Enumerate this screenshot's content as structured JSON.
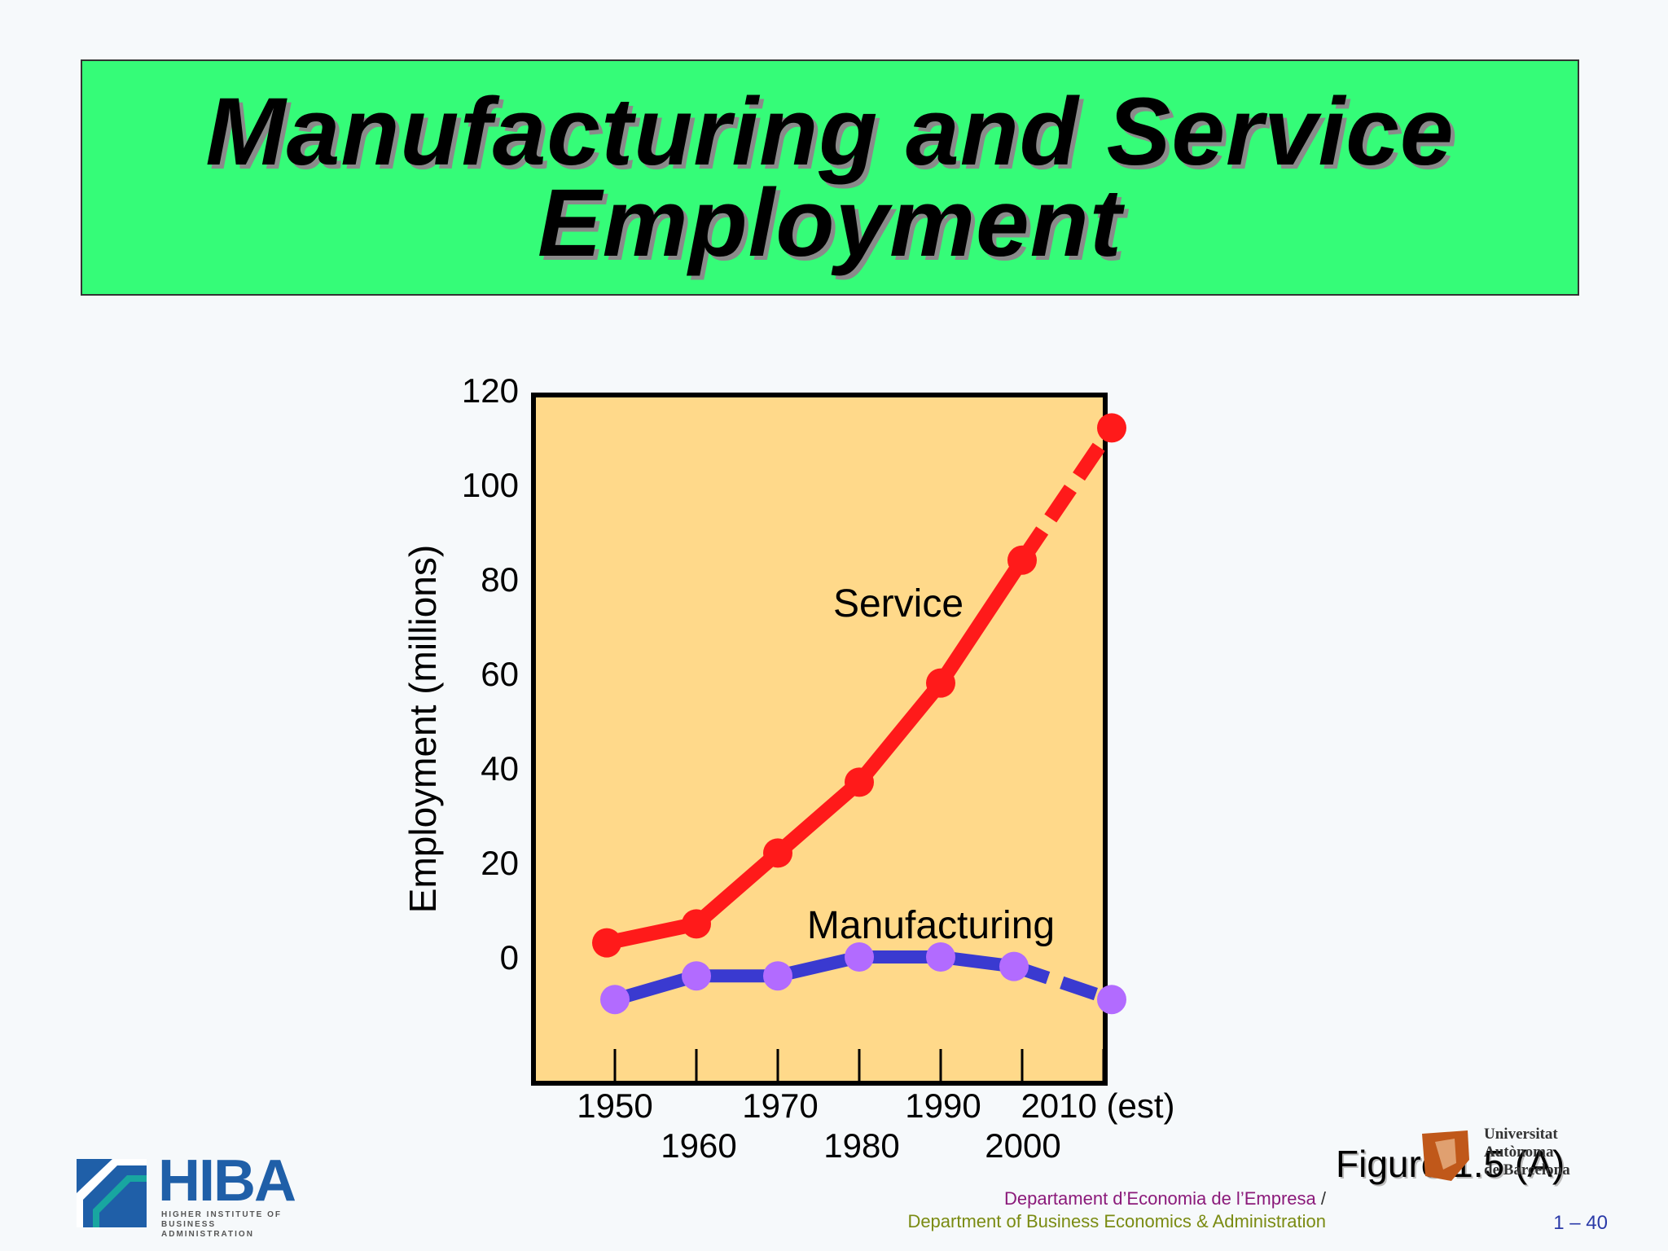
{
  "slide": {
    "title_lines": [
      "Manufacturing and Service",
      "Employment"
    ],
    "figure_label": "Figure 1.5 (A)",
    "page_number": "1 – 40",
    "department_ca": "Departament d’Economia de l’Empresa",
    "department_separator": "/",
    "department_en": "Department of Business Economics & Administration",
    "logo_left_text": "HIBA",
    "logo_left_subtitle_1": "HIGHER INSTITUTE OF",
    "logo_left_subtitle_2": "BUSINESS ADMINISTRATION",
    "logo_right_lines": [
      "Universitat",
      "Autònoma",
      "de Barcelona"
    ],
    "colors": {
      "title_bg": "#35fc78",
      "plot_bg": "#ffd98a",
      "service": "#ff1a1a",
      "manufacturing_line": "#3a3ad0",
      "manufacturing_marker": "#b26bff"
    }
  },
  "chart_data": {
    "type": "line",
    "title": "",
    "ylabel": "Employment (millions)",
    "xlabel": "",
    "ylim": [
      -26,
      120
    ],
    "xlim": [
      1945,
      2010
    ],
    "yticks": [
      0,
      20,
      40,
      60,
      80,
      100,
      120
    ],
    "xtick_labels_row1": [
      "1950",
      "1970",
      "1990",
      "2010 (est)"
    ],
    "xtick_labels_row2": [
      "1960",
      "1980",
      "2000"
    ],
    "xticks": [
      1950,
      1960,
      1970,
      1980,
      1990,
      2000,
      2010
    ],
    "grid": false,
    "series": [
      {
        "name": "Service",
        "x": [
          1949,
          1960,
          1970,
          1980,
          1990,
          2000,
          2011
        ],
        "y": [
          3,
          7,
          22,
          37,
          58,
          84,
          112
        ],
        "projected_from_index": 5
      },
      {
        "name": "Manufacturing",
        "x": [
          1950,
          1960,
          1970,
          1980,
          1990,
          1999,
          2011
        ],
        "y": [
          -9,
          -4,
          -4,
          0,
          0,
          -2,
          -9
        ],
        "projected_from_index": 5
      }
    ]
  }
}
